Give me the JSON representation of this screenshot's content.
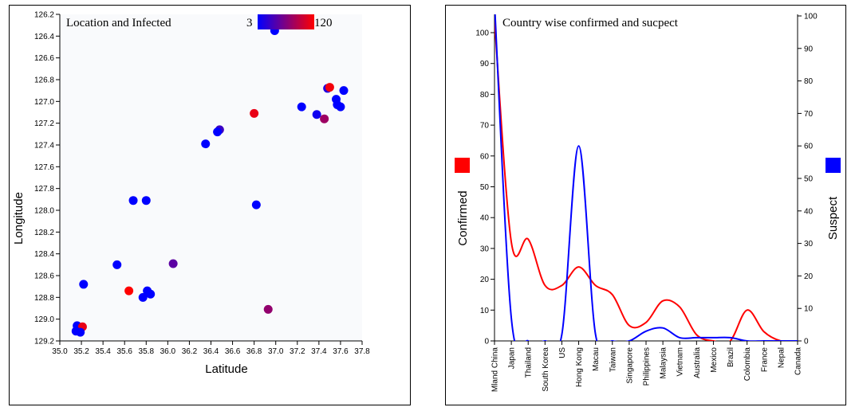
{
  "chart_data": [
    {
      "type": "scatter",
      "title": "Location and Infected",
      "xlabel": "Latitude",
      "ylabel": "Longitude",
      "xlim": [
        35.0,
        37.8
      ],
      "ylim": [
        126.2,
        129.2
      ],
      "y_reversed": true,
      "x_ticks": [
        "35.0",
        "35.2",
        "35.4",
        "35.6",
        "35.8",
        "36.0",
        "36.2",
        "36.4",
        "36.6",
        "36.8",
        "37.0",
        "37.2",
        "37.4",
        "37.6",
        "37.8"
      ],
      "y_ticks": [
        "126.2",
        "126.4",
        "126.6",
        "126.8",
        "127.0",
        "127.2",
        "127.4",
        "127.6",
        "127.8",
        "128.0",
        "128.2",
        "128.4",
        "128.6",
        "128.8",
        "129.0",
        "129.2"
      ],
      "color_legend": {
        "min_label": "3",
        "max_label": "120",
        "min": 3,
        "max": 120,
        "min_color": "#0000ff",
        "max_color": "#ff0000"
      },
      "background": "#f9fafc",
      "points": [
        {
          "x": 36.99,
          "y": 126.35,
          "value": 3
        },
        {
          "x": 37.48,
          "y": 126.88,
          "value": 18
        },
        {
          "x": 37.5,
          "y": 126.87,
          "value": 115
        },
        {
          "x": 37.63,
          "y": 126.9,
          "value": 3
        },
        {
          "x": 37.56,
          "y": 126.98,
          "value": 3
        },
        {
          "x": 37.24,
          "y": 127.05,
          "value": 3
        },
        {
          "x": 37.57,
          "y": 127.03,
          "value": 3
        },
        {
          "x": 37.6,
          "y": 127.05,
          "value": 3
        },
        {
          "x": 36.8,
          "y": 127.11,
          "value": 110
        },
        {
          "x": 37.38,
          "y": 127.12,
          "value": 10
        },
        {
          "x": 37.45,
          "y": 127.16,
          "value": 75
        },
        {
          "x": 36.48,
          "y": 127.26,
          "value": 30
        },
        {
          "x": 36.46,
          "y": 127.28,
          "value": 3
        },
        {
          "x": 36.35,
          "y": 127.39,
          "value": 3
        },
        {
          "x": 35.68,
          "y": 127.91,
          "value": 3
        },
        {
          "x": 35.8,
          "y": 127.91,
          "value": 3
        },
        {
          "x": 36.82,
          "y": 127.95,
          "value": 3
        },
        {
          "x": 36.05,
          "y": 128.49,
          "value": 45
        },
        {
          "x": 35.53,
          "y": 128.5,
          "value": 3
        },
        {
          "x": 35.22,
          "y": 128.68,
          "value": 3
        },
        {
          "x": 35.64,
          "y": 128.74,
          "value": 120
        },
        {
          "x": 35.81,
          "y": 128.74,
          "value": 3
        },
        {
          "x": 35.84,
          "y": 128.77,
          "value": 3
        },
        {
          "x": 35.77,
          "y": 128.8,
          "value": 3
        },
        {
          "x": 36.93,
          "y": 128.91,
          "value": 70
        },
        {
          "x": 35.16,
          "y": 129.06,
          "value": 3
        },
        {
          "x": 35.21,
          "y": 129.07,
          "value": 110
        },
        {
          "x": 35.15,
          "y": 129.11,
          "value": 3
        },
        {
          "x": 35.19,
          "y": 129.12,
          "value": 3
        }
      ]
    },
    {
      "type": "line",
      "title": "Country wise confirmed and sucpect",
      "categories": [
        "Mland China",
        "Japan",
        "Thailand",
        "South Korea",
        "US",
        "Hong Kong",
        "Macau",
        "Taiwan",
        "Singapore",
        "Philippines",
        "Malaysia",
        "Vietnam",
        "Australia",
        "Mexico",
        "Brazil",
        "Colombia",
        "France",
        "Nepal",
        "Canada"
      ],
      "ylabel_left": "Confirmed",
      "ylabel_right": "Suspect",
      "ylim_left": [
        0,
        100
      ],
      "ylim_right": [
        0,
        100
      ],
      "y_ticks_left": [
        "0",
        "10",
        "20",
        "30",
        "40",
        "50",
        "60",
        "70",
        "80",
        "90",
        "100"
      ],
      "y_ticks_right": [
        "0",
        "10",
        "20",
        "30",
        "40",
        "50",
        "60",
        "70",
        "80",
        "90",
        "100"
      ],
      "series": [
        {
          "name": "Confirmed",
          "color": "#ff0000",
          "axis": "left",
          "values": [
            104,
            32,
            33,
            18,
            18,
            24,
            18,
            15,
            5,
            6,
            13,
            11,
            2,
            0,
            0,
            10,
            3,
            0,
            0
          ]
        },
        {
          "name": "Suspect",
          "color": "#0000ff",
          "axis": "right",
          "values": [
            104,
            7,
            0,
            0,
            2,
            60,
            2,
            0,
            0,
            3,
            4,
            1,
            1,
            1,
            1,
            0,
            0,
            0,
            0
          ]
        }
      ],
      "legend_colors": {
        "confirmed": "#ff0000",
        "suspect": "#0000ff"
      }
    }
  ]
}
